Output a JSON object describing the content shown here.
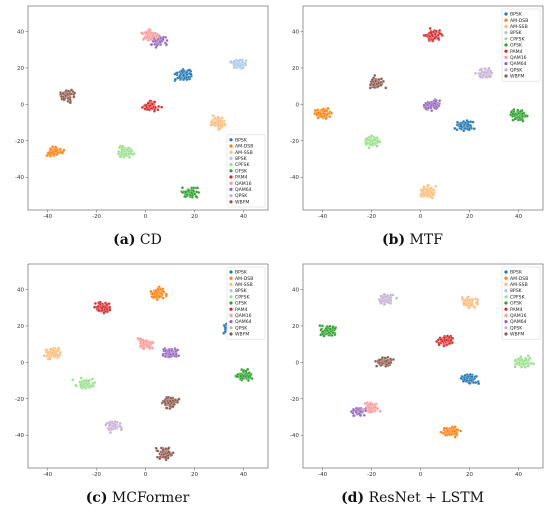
{
  "colors": {
    "BPSK": "#1f77b4",
    "AM-DSB": "#ff7f0e",
    "AM-SSB": "#ffbb78",
    "8PSK": "#aec7e8",
    "CPFSK": "#98df8a",
    "GFSK": "#2ca02c",
    "PAM4": "#d62728",
    "QAM16": "#ff9896",
    "QAM64": "#9467bd",
    "QPSK": "#c5b0d5",
    "WBFM": "#8c564b"
  },
  "chart_data": [
    {
      "type": "scatter",
      "caption_label": "(a)",
      "caption_text": "CD",
      "legend_position": "bottom-right",
      "xlim": [
        -48,
        50
      ],
      "ylim": [
        -58,
        54
      ],
      "xticks": [
        -40,
        -20,
        0,
        20,
        40
      ],
      "yticks": [
        -40,
        -20,
        0,
        20,
        40
      ],
      "legend": [
        "BPSK",
        "AM-DSB",
        "AM-SSB",
        "8PSK",
        "CPFSK",
        "GFSK",
        "PAM4",
        "QAM16",
        "QAM64",
        "QPSK",
        "WBFM"
      ],
      "clusters": [
        {
          "series": "BPSK",
          "x": 16,
          "y": 16
        },
        {
          "series": "QAM64",
          "x": 5,
          "y": 35
        },
        {
          "series": "QAM16",
          "x": 2,
          "y": 38
        },
        {
          "series": "8PSK",
          "x": 38,
          "y": 22
        },
        {
          "series": "WBFM",
          "x": -32,
          "y": 5
        },
        {
          "series": "PAM4",
          "x": 2,
          "y": -1
        },
        {
          "series": "AM-SSB",
          "x": 30,
          "y": -10
        },
        {
          "series": "AM-DSB",
          "x": -37,
          "y": -26
        },
        {
          "series": "CPFSK",
          "x": -8,
          "y": -26
        },
        {
          "series": "GFSK",
          "x": 18,
          "y": -48
        }
      ]
    },
    {
      "type": "scatter",
      "caption_label": "(b)",
      "caption_text": "MTF",
      "legend_position": "top-right",
      "xlim": [
        -48,
        50
      ],
      "ylim": [
        -58,
        54
      ],
      "xticks": [
        -40,
        -20,
        0,
        20,
        40
      ],
      "yticks": [
        -40,
        -20,
        0,
        20,
        40
      ],
      "legend": [
        "BPSK",
        "AM-DSB",
        "AM-SSB",
        "8PSK",
        "CPFSK",
        "GFSK",
        "PAM4",
        "QAM16",
        "QAM64",
        "QPSK",
        "WBFM"
      ],
      "clusters": [
        {
          "series": "PAM4",
          "x": 5,
          "y": 38
        },
        {
          "series": "WBFM",
          "x": -18,
          "y": 12
        },
        {
          "series": "QPSK",
          "x": 26,
          "y": 17
        },
        {
          "series": "QAM64",
          "x": 5,
          "y": 0
        },
        {
          "series": "AM-DSB",
          "x": -40,
          "y": -5
        },
        {
          "series": "BPSK",
          "x": 18,
          "y": -12
        },
        {
          "series": "GFSK",
          "x": 40,
          "y": -6
        },
        {
          "series": "CPFSK",
          "x": -20,
          "y": -20
        },
        {
          "series": "AM-SSB",
          "x": 3,
          "y": -48
        }
      ]
    },
    {
      "type": "scatter",
      "caption_label": "(c)",
      "caption_text": "MCFormer",
      "legend_position": "top-right",
      "xlim": [
        -48,
        50
      ],
      "ylim": [
        -58,
        54
      ],
      "xticks": [
        -40,
        -20,
        0,
        20,
        40
      ],
      "yticks": [
        -40,
        -20,
        0,
        20,
        40
      ],
      "legend": [
        "BPSK",
        "AM-DSB",
        "AM-SSB",
        "8PSK",
        "CPFSK",
        "GFSK",
        "PAM4",
        "QAM16",
        "QAM64",
        "QPSK",
        "WBFM"
      ],
      "clusters": [
        {
          "series": "PAM4",
          "x": -18,
          "y": 30
        },
        {
          "series": "AM-DSB",
          "x": 5,
          "y": 38
        },
        {
          "series": "BPSK",
          "x": 35,
          "y": 19
        },
        {
          "series": "AM-SSB",
          "x": -38,
          "y": 5
        },
        {
          "series": "QAM16",
          "x": 0,
          "y": 10
        },
        {
          "series": "QAM64",
          "x": 10,
          "y": 5
        },
        {
          "series": "GFSK",
          "x": 40,
          "y": -7
        },
        {
          "series": "CPFSK",
          "x": -25,
          "y": -12
        },
        {
          "series": "WBFM",
          "x": 10,
          "y": -22
        },
        {
          "series": "QPSK",
          "x": -13,
          "y": -35
        },
        {
          "series": "WBFM",
          "x": 8,
          "y": -50
        }
      ]
    },
    {
      "type": "scatter",
      "caption_label": "(d)",
      "caption_text": "ResNet + LSTM",
      "legend_position": "top-right",
      "xlim": [
        -48,
        50
      ],
      "ylim": [
        -58,
        54
      ],
      "xticks": [
        -40,
        -20,
        0,
        20,
        40
      ],
      "yticks": [
        -40,
        -20,
        0,
        20,
        40
      ],
      "legend": [
        "BPSK",
        "AM-DSB",
        "AM-SSB",
        "8PSK",
        "CPFSK",
        "GFSK",
        "PAM4",
        "QAM16",
        "QAM64",
        "QPSK",
        "WBFM"
      ],
      "clusters": [
        {
          "series": "QPSK",
          "x": -14,
          "y": 35
        },
        {
          "series": "AM-SSB",
          "x": 20,
          "y": 33
        },
        {
          "series": "GFSK",
          "x": -38,
          "y": 17
        },
        {
          "series": "PAM4",
          "x": 10,
          "y": 12
        },
        {
          "series": "WBFM",
          "x": -15,
          "y": 0
        },
        {
          "series": "CPFSK",
          "x": 42,
          "y": 0
        },
        {
          "series": "BPSK",
          "x": 20,
          "y": -9
        },
        {
          "series": "QAM64",
          "x": -25,
          "y": -27
        },
        {
          "series": "QAM16",
          "x": -20,
          "y": -25
        },
        {
          "series": "AM-DSB",
          "x": 12,
          "y": -38
        }
      ]
    }
  ]
}
